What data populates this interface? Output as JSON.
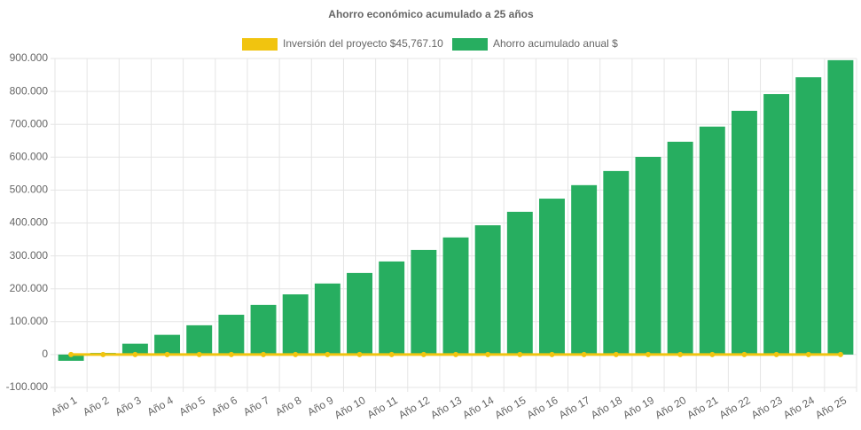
{
  "chart_data": {
    "type": "bar",
    "title": "Ahorro económico acumulado a 25 años",
    "categories": [
      "Año 1",
      "Año 2",
      "Año 3",
      "Año 4",
      "Año 5",
      "Año 6",
      "Año 7",
      "Año 8",
      "Año 9",
      "Año 10",
      "Año 11",
      "Año 12",
      "Año 13",
      "Año 14",
      "Año 15",
      "Año 16",
      "Año 17",
      "Año 18",
      "Año 19",
      "Año 20",
      "Año 21",
      "Año 22",
      "Año 23",
      "Año 24",
      "Año 25"
    ],
    "series": [
      {
        "name": "Inversión del proyecto $45,767.10",
        "type": "line",
        "color": "#f1c40f",
        "values": [
          0,
          0,
          0,
          0,
          0,
          0,
          0,
          0,
          0,
          0,
          0,
          0,
          0,
          0,
          0,
          0,
          0,
          0,
          0,
          0,
          0,
          0,
          0,
          0,
          0
        ]
      },
      {
        "name": "Ahorro acumulado anual $",
        "type": "bar",
        "color": "#27ae60",
        "values": [
          -19000,
          5000,
          33000,
          60000,
          89000,
          121000,
          151000,
          183000,
          216000,
          248000,
          283000,
          318000,
          356000,
          393000,
          434000,
          474000,
          515000,
          558000,
          601000,
          647000,
          693000,
          741000,
          792000,
          843000,
          895000
        ]
      }
    ],
    "ylim": [
      -100000,
      900000
    ],
    "yticks": [
      {
        "value": -100000,
        "label": "-100.000"
      },
      0,
      {
        "value": 100000,
        "label": "100.000"
      },
      {
        "value": 200000,
        "label": "200.000"
      },
      {
        "value": 300000,
        "label": "300.000"
      },
      {
        "value": 400000,
        "label": "400.000"
      },
      {
        "value": 500000,
        "label": "500.000"
      },
      {
        "value": 600000,
        "label": "600.000"
      },
      {
        "value": 700000,
        "label": "700.000"
      },
      {
        "value": 800000,
        "label": "800.000"
      },
      {
        "value": 900000,
        "label": "900.000"
      }
    ],
    "grid": true,
    "legend": "top"
  }
}
